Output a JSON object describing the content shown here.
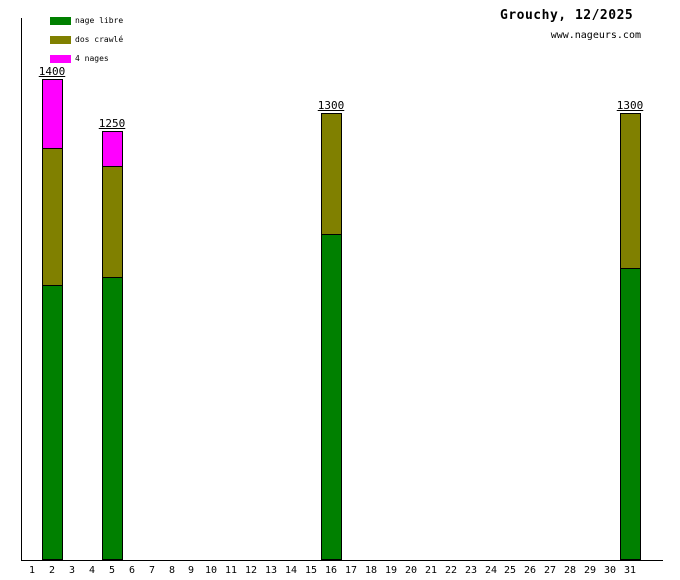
{
  "header": {
    "title": "Grouchy, 12/2025",
    "website": "www.nageurs.com"
  },
  "legend": {
    "items": [
      {
        "label": "nage libre",
        "color": "#008000"
      },
      {
        "label": "dos crawlé",
        "color": "#808000"
      },
      {
        "label": "4 nages",
        "color": "#ff00ff"
      }
    ]
  },
  "chart_data": {
    "type": "bar",
    "stacked": true,
    "title": "Grouchy, 12/2025",
    "subtitle": "www.nageurs.com",
    "xlabel": "",
    "ylabel": "",
    "ylim": [
      0,
      1580
    ],
    "grid": false,
    "legend_position": "top-left",
    "categories": [
      "1",
      "2",
      "3",
      "4",
      "5",
      "6",
      "7",
      "8",
      "9",
      "10",
      "11",
      "12",
      "13",
      "14",
      "15",
      "16",
      "17",
      "18",
      "19",
      "20",
      "21",
      "22",
      "23",
      "24",
      "25",
      "26",
      "27",
      "28",
      "29",
      "30",
      "31"
    ],
    "series": [
      {
        "name": "nage libre",
        "color": "#008000",
        "values": [
          0,
          800,
          0,
          0,
          825,
          0,
          0,
          0,
          0,
          0,
          0,
          0,
          0,
          0,
          0,
          950,
          0,
          0,
          0,
          0,
          0,
          0,
          0,
          0,
          0,
          0,
          0,
          0,
          0,
          0,
          850
        ]
      },
      {
        "name": "dos crawlé",
        "color": "#808000",
        "values": [
          0,
          400,
          0,
          0,
          325,
          0,
          0,
          0,
          0,
          0,
          0,
          0,
          0,
          0,
          0,
          350,
          0,
          0,
          0,
          0,
          0,
          0,
          0,
          0,
          0,
          0,
          0,
          0,
          0,
          0,
          450
        ]
      },
      {
        "name": "4 nages",
        "color": "#ff00ff",
        "values": [
          0,
          200,
          0,
          0,
          100,
          0,
          0,
          0,
          0,
          0,
          0,
          0,
          0,
          0,
          0,
          0,
          0,
          0,
          0,
          0,
          0,
          0,
          0,
          0,
          0,
          0,
          0,
          0,
          0,
          0,
          0
        ]
      }
    ],
    "totals": [
      0,
      1400,
      0,
      0,
      1250,
      0,
      0,
      0,
      0,
      0,
      0,
      0,
      0,
      0,
      0,
      1300,
      0,
      0,
      0,
      0,
      0,
      0,
      0,
      0,
      0,
      0,
      0,
      0,
      0,
      0,
      1300
    ]
  }
}
